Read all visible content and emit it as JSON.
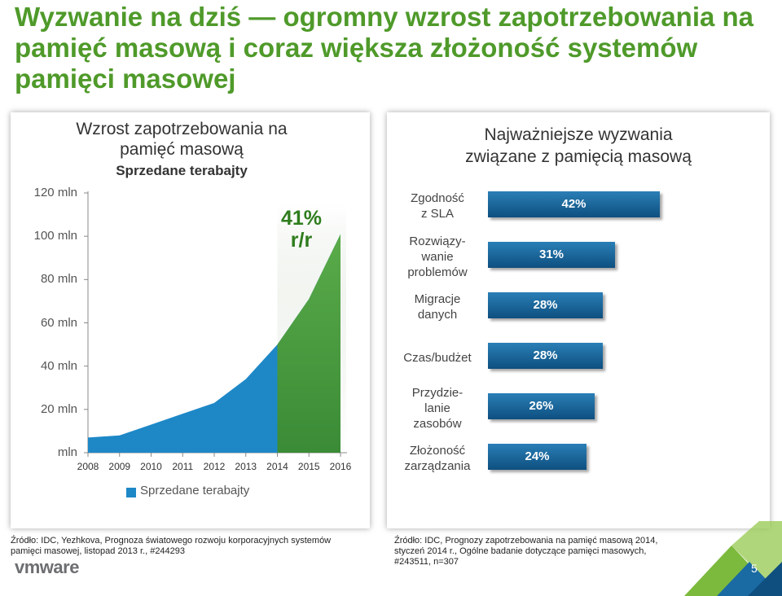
{
  "slide": {
    "title": "Wyzwanie na dziś — ogromny wzrost zapotrzebowania na pamięć masową i coraz większa złożoność systemów pamięci masowej",
    "page_number": "5",
    "logo_text": "vmware",
    "accent_color": "#4f9a2a"
  },
  "left_panel": {
    "title_line1": "Wzrost zapotrzebowania na",
    "title_line2": "pamięć masową",
    "subtitle": "Sprzedane terabajty",
    "growth_line1": "41%",
    "growth_line2": "r/r",
    "legend": "Sprzedane terabajty",
    "source_line1": "Źródło: IDC, Yezhkova, Prognoza światowego rozwoju korporacyjnych systemów",
    "source_line2": "pamięci masowej, listopad 2013 r., #244293"
  },
  "right_panel": {
    "title_line1": "Najważniejsze wyzwania",
    "title_line2": "związane z pamięcią masową",
    "source_line1": "Źródło: IDC, Prognozy zapotrzebowania na pamięć masową 2014,",
    "source_line2": "styczeń 2014 r., Ogólne badanie dotyczące pamięci masowych,",
    "source_line3": "#243511, n=307"
  },
  "chart_data": [
    {
      "type": "area",
      "title": "Wzrost zapotrzebowania na pamięć masową",
      "subtitle": "Sprzedane terabajty",
      "y_tick_labels": [
        "120 mln",
        "100 mln",
        "80 mln",
        "60 mln",
        "40 mln",
        "20 mln",
        "mln"
      ],
      "y_ticks": [
        120,
        100,
        80,
        60,
        40,
        20,
        0
      ],
      "ylim": [
        0,
        120
      ],
      "x": [
        2008,
        2009,
        2010,
        2011,
        2012,
        2013,
        2014,
        2015,
        2016
      ],
      "x_tick_labels": [
        "2008",
        "2009",
        "2010",
        "2011",
        "2012",
        "2013",
        "2014",
        "2015",
        "2016"
      ],
      "x_range": [
        2008,
        2016
      ],
      "points": [
        {
          "x": 2008,
          "y": 7
        },
        {
          "x": 2009,
          "y": 8
        },
        {
          "x": 2010,
          "y": 13
        },
        {
          "x": 2011,
          "y": 18
        },
        {
          "x": 2012,
          "y": 23
        },
        {
          "x": 2013,
          "y": 34
        },
        {
          "x": 2014,
          "y": 50
        },
        {
          "x": 2015,
          "y": 71
        },
        {
          "x": 2016,
          "y": 101
        }
      ],
      "legend": [
        "Sprzedane terabajty"
      ],
      "annotation": "41% r/r",
      "series_color": "#1e88c7",
      "highlight_color": "#5fae3e"
    },
    {
      "type": "bar",
      "orientation": "horizontal",
      "title": "Najważniejsze wyzwania związane z pamięcią masową",
      "categories": [
        [
          "Zgodność",
          "z SLA"
        ],
        [
          "Rozwiązy-",
          "wanie",
          "problemów"
        ],
        [
          "Migracje",
          "danych"
        ],
        [
          "Czas/budżet"
        ],
        [
          "Przydzie-",
          "lanie",
          "zasobów"
        ],
        [
          "Złożoność",
          "zarządzania"
        ]
      ],
      "values": [
        42,
        31,
        28,
        28,
        26,
        24
      ],
      "value_labels": [
        "42%",
        "31%",
        "28%",
        "28%",
        "26%",
        "24%"
      ],
      "xlim": [
        0,
        42
      ],
      "bar_color": "#1a6aa3"
    }
  ]
}
